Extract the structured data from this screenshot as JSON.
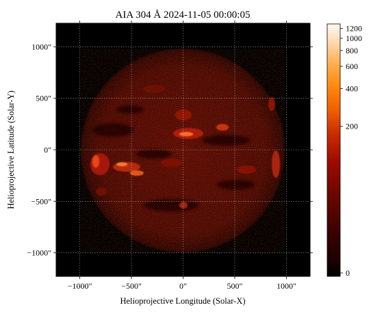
{
  "chart_data": {
    "type": "heatmap",
    "title": "AIA 304 Å 2024-11-05 00:00:05",
    "xlabel": "Helioprojective Longitude (Solar-X)",
    "ylabel": "Helioprojective Latitude (Solar-Y)",
    "xlim": [
      -1229,
      1229
    ],
    "ylim": [
      -1229,
      1229
    ],
    "x_ticks": [
      {
        "value": -1000,
        "label": "−1000\""
      },
      {
        "value": -500,
        "label": "−500\""
      },
      {
        "value": 0,
        "label": "0\""
      },
      {
        "value": 500,
        "label": "500\""
      },
      {
        "value": 1000,
        "label": "1000\""
      }
    ],
    "y_ticks": [
      {
        "value": 1000,
        "label": "1000\""
      },
      {
        "value": 500,
        "label": "500\""
      },
      {
        "value": 0,
        "label": "0\""
      },
      {
        "value": -500,
        "label": "−500\""
      },
      {
        "value": -1000,
        "label": "−1000\""
      }
    ],
    "grid": true,
    "solar_radius_arcsec": 980,
    "colormap": "sdoaia304",
    "colorbar": {
      "scale": "asinh-like",
      "range": [
        0,
        1300
      ],
      "ticks": [
        {
          "value": 1200,
          "label": "1200"
        },
        {
          "value": 1000,
          "label": "1000"
        },
        {
          "value": 800,
          "label": "800"
        },
        {
          "value": 600,
          "label": "600"
        },
        {
          "value": 400,
          "label": "400"
        },
        {
          "value": 200,
          "label": "200"
        },
        {
          "value": 0,
          "label": "0"
        }
      ]
    },
    "colors": {
      "background": "#000000",
      "disk_core": "#5a0c04",
      "disk_edge": "#300602",
      "plage": "#ff7020",
      "grid": "#bbbbbb"
    }
  }
}
